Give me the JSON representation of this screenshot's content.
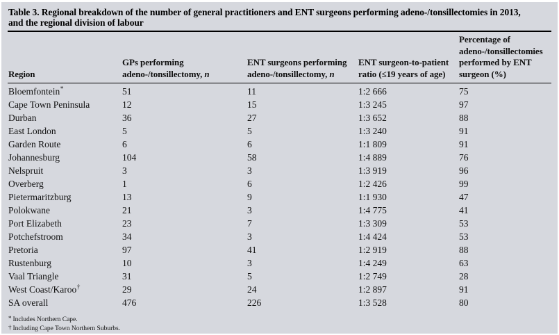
{
  "colors": {
    "panel_background": "#d6d8de",
    "page_border": "#ffffff",
    "rule": "#000000",
    "text": "#111111"
  },
  "table": {
    "title": "Table 3. Regional breakdown of the number of general practitioners and ENT surgeons performing adeno-/tonsillectomies in 2013,\nand the regional division of labour",
    "columns": [
      {
        "id": "region",
        "text": "Region",
        "italic_suffix": ""
      },
      {
        "id": "gps",
        "text": "GPs performing adeno-/tonsillectomy, ",
        "italic_suffix": "n"
      },
      {
        "id": "ent-surgeons",
        "text": "ENT surgeons performing adeno-/tonsillectomy, ",
        "italic_suffix": "n"
      },
      {
        "id": "ratio",
        "text": "ENT surgeon-to-patient ratio (≤19 years of age)",
        "italic_suffix": ""
      },
      {
        "id": "pct-ent",
        "text": "Percentage of adeno-/tonsillectomies performed by ENT surgeon (%)",
        "italic_suffix": ""
      }
    ],
    "rows": [
      {
        "region": "Bloemfontein",
        "marker": "*",
        "gps": "51",
        "ent_surgeons": "11",
        "ratio": "1:2 666",
        "pct_ent": "75"
      },
      {
        "region": "Cape Town Peninsula",
        "marker": "",
        "gps": "12",
        "ent_surgeons": "15",
        "ratio": "1:3 245",
        "pct_ent": "97"
      },
      {
        "region": "Durban",
        "marker": "",
        "gps": "36",
        "ent_surgeons": "27",
        "ratio": "1:3 652",
        "pct_ent": "88"
      },
      {
        "region": "East London",
        "marker": "",
        "gps": "5",
        "ent_surgeons": "5",
        "ratio": "1:3 240",
        "pct_ent": "91"
      },
      {
        "region": "Garden Route",
        "marker": "",
        "gps": "6",
        "ent_surgeons": "6",
        "ratio": "1:1 809",
        "pct_ent": "91"
      },
      {
        "region": "Johannesburg",
        "marker": "",
        "gps": "104",
        "ent_surgeons": "58",
        "ratio": "1:4 889",
        "pct_ent": "76"
      },
      {
        "region": "Nelspruit",
        "marker": "",
        "gps": "3",
        "ent_surgeons": "3",
        "ratio": "1:3 919",
        "pct_ent": "96"
      },
      {
        "region": "Overberg",
        "marker": "",
        "gps": "1",
        "ent_surgeons": "6",
        "ratio": "1:2 426",
        "pct_ent": "99"
      },
      {
        "region": "Pietermaritzburg",
        "marker": "",
        "gps": "13",
        "ent_surgeons": "9",
        "ratio": "1:1 930",
        "pct_ent": "47"
      },
      {
        "region": "Polokwane",
        "marker": "",
        "gps": "21",
        "ent_surgeons": "3",
        "ratio": "1:4 775",
        "pct_ent": "41"
      },
      {
        "region": "Port Elizabeth",
        "marker": "",
        "gps": "23",
        "ent_surgeons": "7",
        "ratio": "1:3 309",
        "pct_ent": "53"
      },
      {
        "region": "Potchefstroom",
        "marker": "",
        "gps": "34",
        "ent_surgeons": "3",
        "ratio": "1:4 424",
        "pct_ent": "53"
      },
      {
        "region": "Pretoria",
        "marker": "",
        "gps": "97",
        "ent_surgeons": "41",
        "ratio": "1:2 919",
        "pct_ent": "88"
      },
      {
        "region": "Rustenburg",
        "marker": "",
        "gps": "10",
        "ent_surgeons": "3",
        "ratio": "1:4 249",
        "pct_ent": "63"
      },
      {
        "region": "Vaal Triangle",
        "marker": "",
        "gps": "31",
        "ent_surgeons": "5",
        "ratio": "1:2 749",
        "pct_ent": "28"
      },
      {
        "region": "West Coast/Karoo",
        "marker": "†",
        "gps": "29",
        "ent_surgeons": "24",
        "ratio": "1:2 897",
        "pct_ent": "91"
      },
      {
        "region": "SA overall",
        "marker": "",
        "gps": "476",
        "ent_surgeons": "226",
        "ratio": "1:3 528",
        "pct_ent": "80"
      }
    ],
    "footnotes": [
      {
        "marker": "*",
        "text": "Includes Northern Cape."
      },
      {
        "marker": "†",
        "text": "Including Cape Town Northern Suburbs."
      }
    ]
  }
}
